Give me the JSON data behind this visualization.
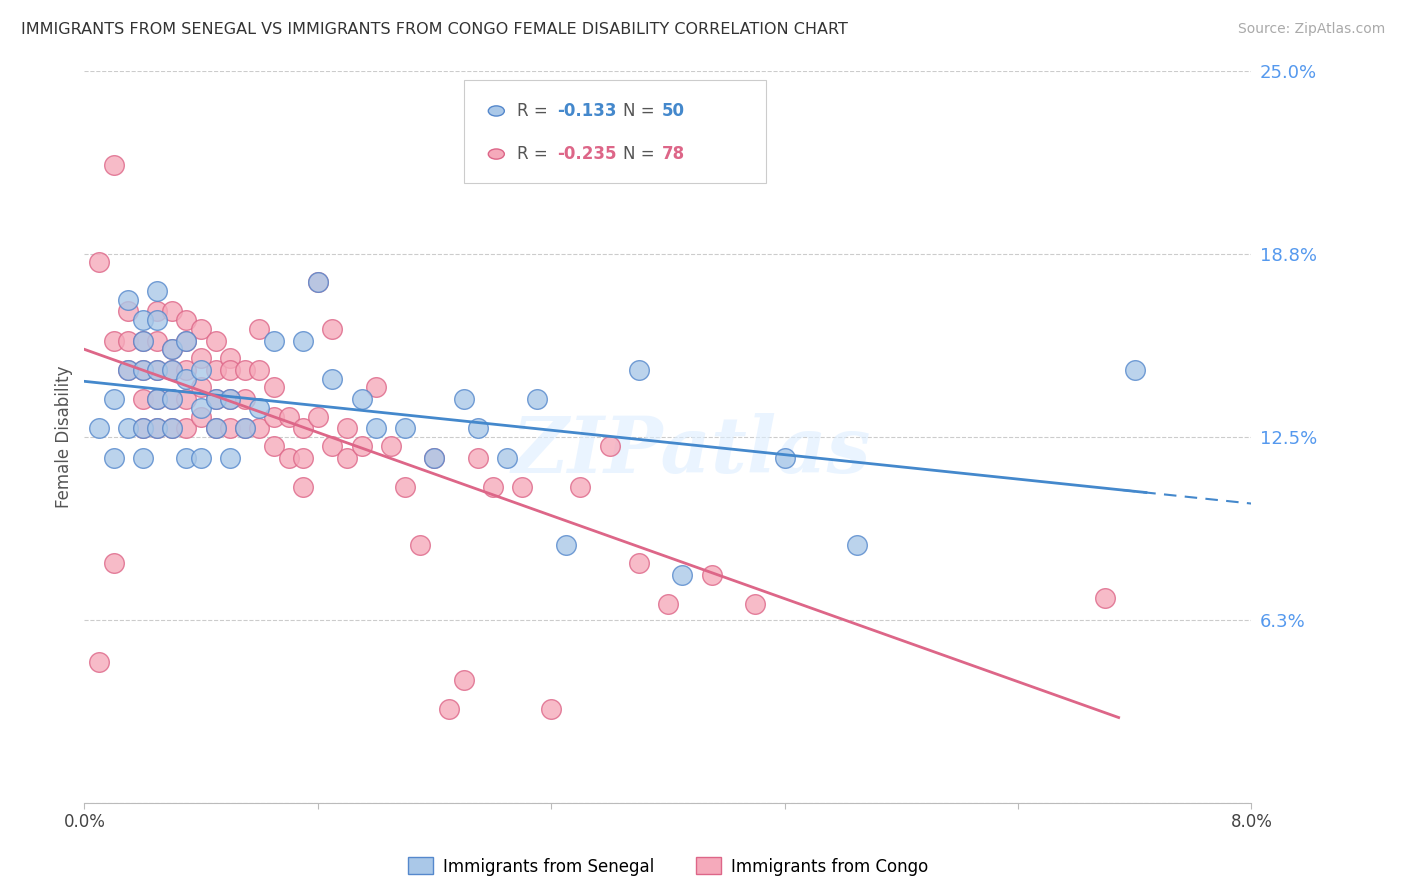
{
  "title": "IMMIGRANTS FROM SENEGAL VS IMMIGRANTS FROM CONGO FEMALE DISABILITY CORRELATION CHART",
  "source": "Source: ZipAtlas.com",
  "ylabel_label": "Female Disability",
  "xlim": [
    0.0,
    0.08
  ],
  "ylim": [
    0.0,
    0.25
  ],
  "ytick_vals": [
    0.0,
    0.0625,
    0.125,
    0.1875,
    0.25
  ],
  "ytick_labels": [
    "",
    "6.3%",
    "12.5%",
    "18.8%",
    "25.0%"
  ],
  "background_color": "#ffffff",
  "grid_color": "#cccccc",
  "watermark": "ZIPatlas",
  "senegal_color": "#aac8e8",
  "congo_color": "#f5aabb",
  "senegal_edge": "#5588cc",
  "congo_edge": "#dd6688",
  "trend_senegal_color": "#4488cc",
  "trend_congo_color": "#dd6688",
  "legend_R_senegal": "-0.133",
  "legend_N_senegal": "50",
  "legend_R_congo": "-0.235",
  "legend_N_congo": "78",
  "senegal_x": [
    0.001,
    0.002,
    0.002,
    0.003,
    0.003,
    0.003,
    0.004,
    0.004,
    0.004,
    0.004,
    0.004,
    0.005,
    0.005,
    0.005,
    0.005,
    0.005,
    0.006,
    0.006,
    0.006,
    0.006,
    0.007,
    0.007,
    0.007,
    0.008,
    0.008,
    0.008,
    0.009,
    0.009,
    0.01,
    0.01,
    0.011,
    0.012,
    0.013,
    0.015,
    0.016,
    0.017,
    0.019,
    0.02,
    0.022,
    0.024,
    0.026,
    0.027,
    0.029,
    0.031,
    0.033,
    0.038,
    0.041,
    0.048,
    0.053,
    0.072
  ],
  "senegal_y": [
    0.128,
    0.118,
    0.138,
    0.172,
    0.148,
    0.128,
    0.165,
    0.148,
    0.128,
    0.118,
    0.158,
    0.175,
    0.165,
    0.148,
    0.138,
    0.128,
    0.155,
    0.148,
    0.138,
    0.128,
    0.158,
    0.145,
    0.118,
    0.148,
    0.135,
    0.118,
    0.128,
    0.138,
    0.138,
    0.118,
    0.128,
    0.135,
    0.158,
    0.158,
    0.178,
    0.145,
    0.138,
    0.128,
    0.128,
    0.118,
    0.138,
    0.128,
    0.118,
    0.138,
    0.088,
    0.148,
    0.078,
    0.118,
    0.088,
    0.148
  ],
  "congo_x": [
    0.001,
    0.001,
    0.002,
    0.002,
    0.002,
    0.003,
    0.003,
    0.003,
    0.004,
    0.004,
    0.004,
    0.004,
    0.005,
    0.005,
    0.005,
    0.005,
    0.005,
    0.006,
    0.006,
    0.006,
    0.006,
    0.006,
    0.007,
    0.007,
    0.007,
    0.007,
    0.007,
    0.008,
    0.008,
    0.008,
    0.008,
    0.009,
    0.009,
    0.009,
    0.009,
    0.01,
    0.01,
    0.01,
    0.01,
    0.011,
    0.011,
    0.011,
    0.012,
    0.012,
    0.012,
    0.013,
    0.013,
    0.013,
    0.014,
    0.014,
    0.015,
    0.015,
    0.015,
    0.016,
    0.016,
    0.017,
    0.017,
    0.018,
    0.018,
    0.019,
    0.02,
    0.021,
    0.022,
    0.023,
    0.024,
    0.025,
    0.026,
    0.027,
    0.028,
    0.03,
    0.032,
    0.034,
    0.036,
    0.038,
    0.04,
    0.043,
    0.046,
    0.07
  ],
  "congo_y": [
    0.185,
    0.048,
    0.218,
    0.158,
    0.082,
    0.168,
    0.158,
    0.148,
    0.158,
    0.148,
    0.138,
    0.128,
    0.168,
    0.158,
    0.148,
    0.138,
    0.128,
    0.168,
    0.155,
    0.148,
    0.138,
    0.128,
    0.165,
    0.158,
    0.148,
    0.138,
    0.128,
    0.162,
    0.152,
    0.142,
    0.132,
    0.158,
    0.148,
    0.138,
    0.128,
    0.152,
    0.148,
    0.138,
    0.128,
    0.148,
    0.138,
    0.128,
    0.162,
    0.148,
    0.128,
    0.142,
    0.132,
    0.122,
    0.132,
    0.118,
    0.128,
    0.118,
    0.108,
    0.178,
    0.132,
    0.162,
    0.122,
    0.128,
    0.118,
    0.122,
    0.142,
    0.122,
    0.108,
    0.088,
    0.118,
    0.032,
    0.042,
    0.118,
    0.108,
    0.108,
    0.032,
    0.108,
    0.122,
    0.082,
    0.068,
    0.078,
    0.068,
    0.07
  ]
}
